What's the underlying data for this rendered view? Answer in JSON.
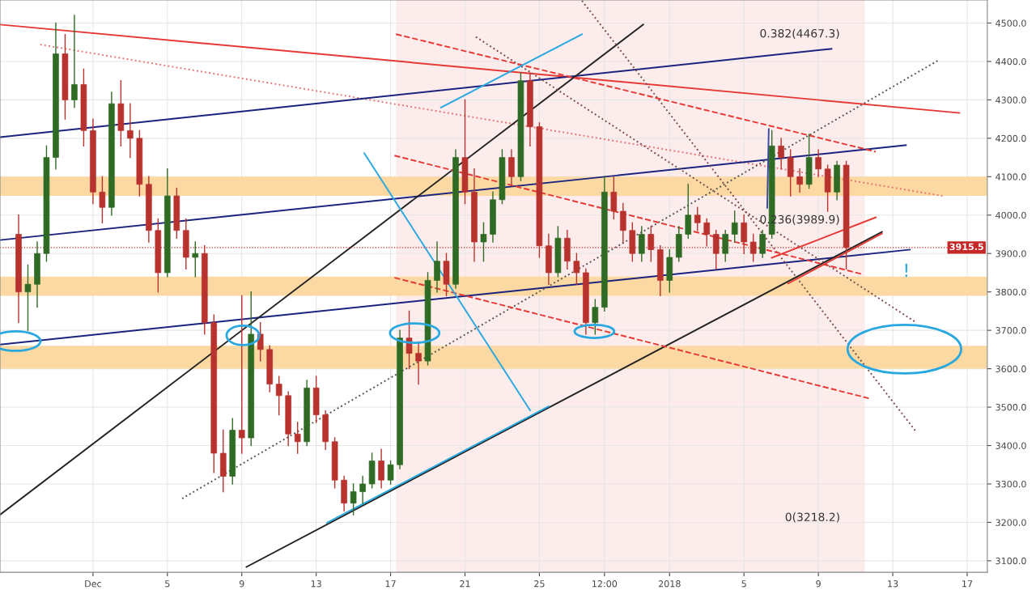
{
  "chart_data": {
    "type": "candlestick",
    "x": [
      "2017-11-27T00:00",
      "2017-11-27T12:00",
      "2017-11-28T00:00",
      "2017-11-28T12:00",
      "2017-11-29T00:00",
      "2017-11-29T12:00",
      "2017-11-30T00:00",
      "2017-11-30T12:00",
      "2017-12-01T00:00",
      "2017-12-01T12:00",
      "2017-12-02T00:00",
      "2017-12-02T12:00",
      "2017-12-03T00:00",
      "2017-12-03T12:00",
      "2017-12-04T00:00",
      "2017-12-04T12:00",
      "2017-12-05T00:00",
      "2017-12-05T12:00",
      "2017-12-06T00:00",
      "2017-12-06T12:00",
      "2017-12-07T00:00",
      "2017-12-07T12:00",
      "2017-12-08T00:00",
      "2017-12-08T12:00",
      "2017-12-09T00:00",
      "2017-12-09T12:00",
      "2017-12-10T00:00",
      "2017-12-10T12:00",
      "2017-12-11T00:00",
      "2017-12-11T12:00",
      "2017-12-12T00:00",
      "2017-12-12T12:00",
      "2017-12-13T00:00",
      "2017-12-13T12:00",
      "2017-12-14T00:00",
      "2017-12-14T12:00",
      "2017-12-15T00:00",
      "2017-12-15T12:00",
      "2017-12-16T00:00",
      "2017-12-16T12:00",
      "2017-12-17T00:00",
      "2017-12-17T12:00",
      "2017-12-18T00:00",
      "2017-12-18T12:00",
      "2017-12-19T00:00",
      "2017-12-19T12:00",
      "2017-12-20T00:00",
      "2017-12-20T12:00",
      "2017-12-21T00:00",
      "2017-12-21T12:00",
      "2017-12-22T00:00",
      "2017-12-22T12:00",
      "2017-12-23T00:00",
      "2017-12-23T12:00",
      "2017-12-24T00:00",
      "2017-12-24T12:00",
      "2017-12-25T00:00",
      "2017-12-25T12:00",
      "2017-12-26T00:00",
      "2017-12-26T12:00",
      "2017-12-27T00:00",
      "2017-12-27T12:00",
      "2017-12-28T00:00",
      "2017-12-28T12:00",
      "2017-12-29T00:00",
      "2017-12-29T12:00",
      "2017-12-30T00:00",
      "2017-12-30T12:00",
      "2017-12-31T00:00",
      "2017-12-31T12:00",
      "2018-01-01T00:00",
      "2018-01-01T12:00",
      "2018-01-02T00:00",
      "2018-01-02T12:00",
      "2018-01-03T00:00",
      "2018-01-03T12:00",
      "2018-01-04T00:00",
      "2018-01-04T12:00",
      "2018-01-05T00:00",
      "2018-01-05T12:00",
      "2018-01-06T00:00",
      "2018-01-06T12:00",
      "2018-01-07T00:00",
      "2018-01-07T12:00",
      "2018-01-08T00:00",
      "2018-01-08T12:00",
      "2018-01-09T00:00",
      "2018-01-09T12:00",
      "2018-01-10T00:00",
      "2018-01-10T12:00"
    ],
    "ohlc": [
      [
        3950,
        4000,
        3720,
        3800
      ],
      [
        3800,
        3870,
        3700,
        3820
      ],
      [
        3820,
        3930,
        3760,
        3900
      ],
      [
        3900,
        4180,
        3880,
        4150
      ],
      [
        4150,
        4500,
        4120,
        4420
      ],
      [
        4420,
        4470,
        4250,
        4300
      ],
      [
        4300,
        4520,
        4280,
        4340
      ],
      [
        4340,
        4380,
        4180,
        4220
      ],
      [
        4220,
        4250,
        4030,
        4060
      ],
      [
        4060,
        4100,
        3980,
        4020
      ],
      [
        4020,
        4320,
        4000,
        4290
      ],
      [
        4290,
        4350,
        4180,
        4220
      ],
      [
        4220,
        4290,
        4150,
        4200
      ],
      [
        4200,
        4220,
        4050,
        4080
      ],
      [
        4080,
        4100,
        3930,
        3960
      ],
      [
        3960,
        3990,
        3800,
        3850
      ],
      [
        3850,
        4120,
        3840,
        4050
      ],
      [
        4050,
        4070,
        3940,
        3960
      ],
      [
        3960,
        3990,
        3860,
        3890
      ],
      [
        3890,
        3930,
        3840,
        3900
      ],
      [
        3900,
        3920,
        3690,
        3720
      ],
      [
        3720,
        3740,
        3330,
        3380
      ],
      [
        3380,
        3440,
        3280,
        3320
      ],
      [
        3320,
        3470,
        3300,
        3440
      ],
      [
        3440,
        3790,
        3380,
        3420
      ],
      [
        3420,
        3800,
        3400,
        3690
      ],
      [
        3690,
        3720,
        3620,
        3650
      ],
      [
        3650,
        3660,
        3540,
        3560
      ],
      [
        3560,
        3580,
        3480,
        3530
      ],
      [
        3530,
        3540,
        3400,
        3430
      ],
      [
        3430,
        3460,
        3380,
        3410
      ],
      [
        3410,
        3570,
        3400,
        3550
      ],
      [
        3550,
        3580,
        3460,
        3480
      ],
      [
        3480,
        3490,
        3390,
        3410
      ],
      [
        3410,
        3420,
        3290,
        3310
      ],
      [
        3310,
        3320,
        3230,
        3250
      ],
      [
        3250,
        3300,
        3220,
        3280
      ],
      [
        3280,
        3320,
        3250,
        3300
      ],
      [
        3300,
        3380,
        3290,
        3360
      ],
      [
        3360,
        3390,
        3290,
        3310
      ],
      [
        3310,
        3360,
        3300,
        3350
      ],
      [
        3350,
        3700,
        3340,
        3680
      ],
      [
        3680,
        3750,
        3600,
        3640
      ],
      [
        3640,
        3670,
        3560,
        3620
      ],
      [
        3620,
        3850,
        3610,
        3830
      ],
      [
        3830,
        3930,
        3800,
        3880
      ],
      [
        3880,
        3900,
        3790,
        3820
      ],
      [
        3820,
        4170,
        3810,
        4150
      ],
      [
        4150,
        4300,
        4030,
        4060
      ],
      [
        4060,
        4120,
        3880,
        3930
      ],
      [
        3930,
        3980,
        3880,
        3950
      ],
      [
        3950,
        4060,
        3930,
        4040
      ],
      [
        4040,
        4170,
        4030,
        4150
      ],
      [
        4150,
        4170,
        4080,
        4100
      ],
      [
        4100,
        4370,
        4090,
        4350
      ],
      [
        4350,
        4370,
        4180,
        4230
      ],
      [
        4230,
        4240,
        3890,
        3920
      ],
      [
        3920,
        3950,
        3820,
        3850
      ],
      [
        3850,
        3970,
        3840,
        3940
      ],
      [
        3940,
        3960,
        3860,
        3880
      ],
      [
        3880,
        3900,
        3820,
        3850
      ],
      [
        3850,
        3860,
        3690,
        3720
      ],
      [
        3720,
        3780,
        3690,
        3760
      ],
      [
        3760,
        4100,
        3750,
        4060
      ],
      [
        4060,
        4100,
        3990,
        4010
      ],
      [
        4010,
        4030,
        3930,
        3960
      ],
      [
        3960,
        3980,
        3880,
        3900
      ],
      [
        3900,
        3970,
        3880,
        3950
      ],
      [
        3950,
        3970,
        3880,
        3910
      ],
      [
        3910,
        3920,
        3790,
        3830
      ],
      [
        3830,
        3910,
        3800,
        3890
      ],
      [
        3890,
        3970,
        3880,
        3950
      ],
      [
        3950,
        4080,
        3940,
        4000
      ],
      [
        4000,
        4020,
        3960,
        3980
      ],
      [
        3980,
        3990,
        3920,
        3950
      ],
      [
        3950,
        3960,
        3860,
        3900
      ],
      [
        3900,
        3960,
        3880,
        3950
      ],
      [
        3950,
        4010,
        3930,
        3980
      ],
      [
        3980,
        4000,
        3900,
        3930
      ],
      [
        3930,
        3950,
        3880,
        3900
      ],
      [
        3900,
        3960,
        3890,
        3950
      ],
      [
        3950,
        4220,
        3940,
        4180
      ],
      [
        4180,
        4200,
        4120,
        4150
      ],
      [
        4150,
        4170,
        4050,
        4100
      ],
      [
        4100,
        4120,
        4060,
        4080
      ],
      [
        4080,
        4210,
        4070,
        4150
      ],
      [
        4150,
        4170,
        4100,
        4120
      ],
      [
        4120,
        4130,
        4010,
        4060
      ],
      [
        4060,
        4140,
        4040,
        4130
      ],
      [
        4130,
        4140,
        3860,
        3915.5
      ]
    ],
    "colors": [
      "#b8322e",
      "#2f6b24",
      "#2f6b24",
      "#2f6b24",
      "#2f6b24",
      "#b8322e",
      "#2f6b24",
      "#b8322e",
      "#b8322e",
      "#b8322e",
      "#2f6b24",
      "#b8322e",
      "#b8322e",
      "#b8322e",
      "#b8322e",
      "#b8322e",
      "#2f6b24",
      "#b8322e",
      "#b8322e",
      "#2f6b24",
      "#b8322e",
      "#b8322e",
      "#b8322e",
      "#2f6b24",
      "#b8322e",
      "#2f6b24",
      "#b8322e",
      "#b8322e",
      "#b8322e",
      "#b8322e",
      "#b8322e",
      "#2f6b24",
      "#b8322e",
      "#b8322e",
      "#b8322e",
      "#b8322e",
      "#2f6b24",
      "#2f6b24",
      "#2f6b24",
      "#b8322e",
      "#2f6b24",
      "#2f6b24",
      "#b8322e",
      "#b8322e",
      "#2f6b24",
      "#2f6b24",
      "#b8322e",
      "#2f6b24",
      "#b8322e",
      "#b8322e",
      "#2f6b24",
      "#2f6b24",
      "#2f6b24",
      "#b8322e",
      "#2f6b24",
      "#b8322e",
      "#b8322e",
      "#b8322e",
      "#2f6b24",
      "#b8322e",
      "#b8322e",
      "#b8322e",
      "#2f6b24",
      "#2f6b24",
      "#b8322e",
      "#b8322e",
      "#b8322e",
      "#2f6b24",
      "#b8322e",
      "#b8322e",
      "#2f6b24",
      "#2f6b24",
      "#2f6b24",
      "#b8322e",
      "#b8322e",
      "#b8322e",
      "#2f6b24",
      "#2f6b24",
      "#b8322e",
      "#b8322e",
      "#2f6b24",
      "#2f6b24",
      "#b8322e",
      "#b8322e",
      "#b8322e",
      "#2f6b24",
      "#b8322e",
      "#b8322e",
      "#2f6b24",
      "#b8322e"
    ],
    "series": [
      {
        "type": "line",
        "x": [
          "2017-11-26T00:00",
          "2018-01-16T14:00"
        ],
        "values": [
          4496,
          4266
        ],
        "color": "#e53935",
        "line_style": "solid"
      },
      {
        "type": "line",
        "x": [
          "2017-11-28T04:00",
          "2018-01-15T16:00"
        ],
        "values": [
          4444,
          4050
        ],
        "color": "#e57373",
        "line_style": "dotted"
      },
      {
        "type": "line",
        "x": [
          "2017-11-26T00:00",
          "2018-01-09T17:00"
        ],
        "values": [
          4203,
          4433
        ],
        "color": "#1a237e",
        "line_style": "solid"
      },
      {
        "type": "line",
        "x": [
          "2017-11-26T00:00",
          "2018-01-13T17:00"
        ],
        "values": [
          3935,
          4182
        ],
        "color": "#1a237e",
        "line_style": "solid"
      },
      {
        "type": "line",
        "x": [
          "2017-11-26T00:00",
          "2018-01-13T22:00"
        ],
        "values": [
          3663,
          3910
        ],
        "color": "#1a237e",
        "line_style": "solid"
      },
      {
        "type": "line",
        "x": [
          "2017-11-26T00:00",
          "2017-12-30T14:00"
        ],
        "values": [
          3220,
          4496
        ],
        "color": "#222222",
        "line_style": "solid"
      },
      {
        "type": "line",
        "x": [
          "2017-12-09T06:00",
          "2018-01-12T10:00"
        ],
        "values": [
          3084,
          3956
        ],
        "color": "#222222",
        "line_style": "solid"
      },
      {
        "type": "line",
        "x": [
          "2017-12-05T19:00",
          "2018-01-15T10:00"
        ],
        "values": [
          3262,
          4402
        ],
        "color": "#555555",
        "line_style": "dotted"
      },
      {
        "type": "line",
        "x": [
          "2017-12-27T07:00",
          "2018-01-14T05:00"
        ],
        "values": [
          4558,
          3439
        ],
        "color": "#7b4b4b",
        "line_style": "dotted"
      },
      {
        "type": "line",
        "x": [
          "2017-12-21T14:00",
          "2018-01-14T05:00"
        ],
        "values": [
          4464,
          3722
        ],
        "color": "#7b4b4b",
        "line_style": "dotted"
      },
      {
        "type": "line",
        "x": [
          "2017-12-17T07:00",
          "2018-01-12T02:00"
        ],
        "values": [
          4471,
          4165
        ],
        "color": "#e53935",
        "line_style": "dashed"
      },
      {
        "type": "line",
        "x": [
          "2017-12-17T05:00",
          "2018-01-11T07:00"
        ],
        "values": [
          4155,
          3847
        ],
        "color": "#e53935",
        "line_style": "dashed"
      },
      {
        "type": "line",
        "x": [
          "2017-12-17T05:00",
          "2018-01-11T17:00"
        ],
        "values": [
          3837,
          3523
        ],
        "color": "#e53935",
        "line_style": "dashed"
      },
      {
        "type": "line",
        "x": [
          "2017-12-13T14:00",
          "2017-12-25T12:00"
        ],
        "values": [
          3199,
          3502
        ],
        "color": "#29a8e0",
        "line_style": "solid"
      },
      {
        "type": "line",
        "x": [
          "2017-12-19T17:00",
          "2017-12-27T07:00"
        ],
        "values": [
          4280,
          4471
        ],
        "color": "#29a8e0",
        "line_style": "solid"
      },
      {
        "type": "line",
        "x": [
          "2017-12-15T14:00",
          "2017-12-24T12:00"
        ],
        "values": [
          4161,
          3492
        ],
        "color": "#29a8e0",
        "line_style": "solid"
      },
      {
        "type": "line",
        "x": [
          "2018-01-06T12:00",
          "2018-01-12T02:00"
        ],
        "values": [
          3889,
          3994
        ],
        "color": "#e53935",
        "line_style": "solid"
      },
      {
        "type": "line",
        "x": [
          "2018-01-07T09:00",
          "2018-01-12T10:00"
        ],
        "values": [
          3822,
          3952
        ],
        "color": "#e53935",
        "line_style": "solid"
      },
      {
        "type": "line",
        "x": [
          "2018-01-06T08:00",
          "2018-01-06T06:00"
        ],
        "values": [
          4224,
          4019
        ],
        "color": "#3949ab",
        "line_style": "solid"
      }
    ],
    "bands": [
      {
        "axis": "x",
        "from": "2017-12-17T07:00",
        "to": "2018-01-11T12:00",
        "color": "#fdecec"
      },
      {
        "axis": "y",
        "from": 4050,
        "to": 4100,
        "color": "#fcd9a2"
      },
      {
        "axis": "y",
        "from": 3790,
        "to": 3840,
        "color": "#fcd9a2"
      },
      {
        "axis": "y",
        "from": 3600,
        "to": 3660,
        "color": "#fcd9a2"
      }
    ],
    "ref_lines": [
      {
        "axis": "y",
        "value": 3915.5,
        "label": "3915.5",
        "color": "#c62828",
        "line_style": "dotted"
      }
    ],
    "annotations": [
      "0.382(4467.3)",
      "0.236(3989.9)",
      "0(3218.2)",
      "!"
    ],
    "xlim": [
      "2017-11-26T00:00",
      "2018-01-18T02:00"
    ],
    "ylim": [
      3070,
      4560
    ],
    "xticks": [
      {
        "value": "2017-12-01",
        "label": "Dec"
      },
      {
        "value": "2017-12-05",
        "label": "5"
      },
      {
        "value": "2017-12-09",
        "label": "9"
      },
      {
        "value": "2017-12-13",
        "label": "13"
      },
      {
        "value": "2017-12-17",
        "label": "17"
      },
      {
        "value": "2017-12-21",
        "label": "21"
      },
      {
        "value": "2017-12-25",
        "label": "25"
      },
      {
        "value": "2017-12-28T12:00",
        "label": "12:00"
      },
      {
        "value": "2018-01-01",
        "label": "2018"
      },
      {
        "value": "2018-01-05",
        "label": "5"
      },
      {
        "value": "2018-01-09",
        "label": "9"
      },
      {
        "value": "2018-01-13",
        "label": "13"
      },
      {
        "value": "2018-01-17",
        "label": "17"
      }
    ],
    "yticks": [
      {
        "value": 3100,
        "label": "3100.0"
      },
      {
        "value": 3200,
        "label": "3200.0"
      },
      {
        "value": 3300,
        "label": "3300.0"
      },
      {
        "value": 3400,
        "label": "3400.0"
      },
      {
        "value": 3500,
        "label": "3500.0"
      },
      {
        "value": 3600,
        "label": "3600.0"
      },
      {
        "value": 3700,
        "label": "3700.0"
      },
      {
        "value": 3800,
        "label": "3800.0"
      },
      {
        "value": 3900,
        "label": "3900.0"
      },
      {
        "value": 4000,
        "label": "4000.0"
      },
      {
        "value": 4100,
        "label": "4100.0"
      },
      {
        "value": 4200,
        "label": "4200.0"
      },
      {
        "value": 4300,
        "label": "4300.0"
      },
      {
        "value": 4400,
        "label": "4400.0"
      },
      {
        "value": 4500,
        "label": "4500.0"
      }
    ],
    "grid": true
  }
}
